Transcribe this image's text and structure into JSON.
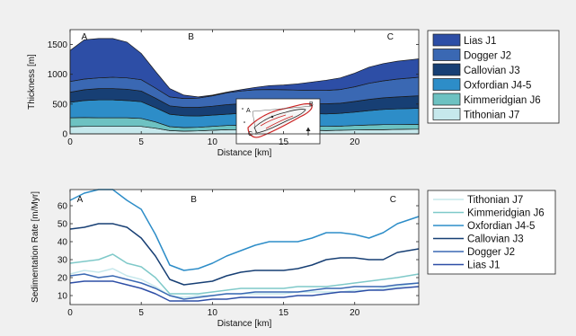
{
  "chart_data": [
    {
      "type": "area",
      "xlabel": "Distance [km]",
      "ylabel": "Thickness [m]",
      "xlim": [
        0,
        24.5
      ],
      "ylim": [
        1750,
        0
      ],
      "y_inverted": true,
      "xticks": [
        0,
        5,
        10,
        15,
        20
      ],
      "yticks": [
        0,
        500,
        1000,
        1500
      ],
      "section_labels": [
        {
          "text": "A",
          "x": 1
        },
        {
          "text": "B",
          "x": 8.5
        },
        {
          "text": "C",
          "x": 22.5
        }
      ],
      "legend_position": "right",
      "x": [
        0,
        1,
        2,
        3,
        4,
        5,
        6,
        7,
        8,
        9,
        10,
        11,
        12,
        13,
        14,
        15,
        16,
        17,
        18,
        19,
        20,
        21,
        22,
        23,
        24.5
      ],
      "top_surface": [
        0,
        0,
        0,
        0,
        0,
        0,
        0,
        0,
        0,
        0,
        0,
        0,
        0,
        0,
        0,
        0,
        0,
        0,
        0,
        0,
        0,
        0,
        0,
        0,
        0
      ],
      "series": [
        {
          "name": "Tithonian J7",
          "color": "#c6e8ec",
          "base": [
            120,
            125,
            125,
            125,
            125,
            125,
            95,
            55,
            45,
            50,
            60,
            70,
            65,
            60,
            55,
            55,
            60,
            60,
            55,
            60,
            65,
            70,
            70,
            75,
            80
          ]
        },
        {
          "name": "Kimmeridgian J6",
          "color": "#6dc2c2",
          "base": [
            270,
            275,
            270,
            270,
            270,
            260,
            200,
            120,
            105,
            110,
            125,
            140,
            145,
            140,
            130,
            125,
            130,
            130,
            125,
            130,
            140,
            150,
            155,
            155,
            160
          ]
        },
        {
          "name": "Oxfordian J4-5",
          "color": "#2d8dc8",
          "base": [
            530,
            560,
            570,
            570,
            560,
            540,
            440,
            330,
            305,
            300,
            315,
            330,
            345,
            355,
            350,
            345,
            340,
            340,
            335,
            345,
            365,
            390,
            410,
            420,
            430
          ]
        },
        {
          "name": "Callovian J3",
          "color": "#173f74",
          "base": [
            700,
            740,
            760,
            760,
            750,
            720,
            600,
            470,
            445,
            445,
            465,
            490,
            505,
            515,
            515,
            510,
            505,
            505,
            505,
            515,
            545,
            580,
            605,
            620,
            640
          ]
        },
        {
          "name": "Dogger J2",
          "color": "#3a68b3",
          "base": [
            880,
            920,
            940,
            950,
            940,
            910,
            770,
            620,
            595,
            600,
            640,
            690,
            720,
            740,
            745,
            740,
            735,
            730,
            730,
            745,
            790,
            850,
            890,
            920,
            950
          ]
        },
        {
          "name": "Lias J1",
          "color": "#2d4ea6",
          "base": [
            1400,
            1580,
            1600,
            1600,
            1540,
            1350,
            1050,
            760,
            650,
            620,
            650,
            700,
            740,
            780,
            810,
            820,
            840,
            870,
            900,
            940,
            1020,
            1120,
            1180,
            1220,
            1260
          ]
        }
      ]
    },
    {
      "type": "line",
      "xlabel": "Distance [km]",
      "ylabel": "Sedimentation Rate [m/Myr]",
      "xlim": [
        0,
        24.5
      ],
      "ylim": [
        5,
        69
      ],
      "xticks": [
        0,
        5,
        10,
        15,
        20
      ],
      "yticks": [
        10,
        20,
        30,
        40,
        50,
        60
      ],
      "section_labels": [
        {
          "text": "A",
          "x": 0.5
        },
        {
          "text": "B",
          "x": 8.5
        },
        {
          "text": "C",
          "x": 22.5
        }
      ],
      "legend_position": "right",
      "x": [
        0,
        1,
        2,
        3,
        4,
        5,
        6,
        7,
        8,
        9,
        10,
        11,
        12,
        13,
        14,
        15,
        16,
        17,
        18,
        19,
        20,
        21,
        22,
        23,
        24.5
      ],
      "series": [
        {
          "name": "Tithonian J7",
          "color": "#c6e8ec",
          "values": [
            22,
            24,
            23,
            25,
            21,
            19,
            15,
            10,
            9,
            10,
            10,
            11,
            11,
            11,
            11,
            11,
            12,
            12,
            12,
            12,
            13,
            13,
            14,
            15,
            17
          ]
        },
        {
          "name": "Kimmeridgian J6",
          "color": "#7fc9c9",
          "values": [
            28,
            29,
            30,
            33,
            28,
            26,
            20,
            11,
            11,
            11,
            12,
            13,
            14,
            14,
            14,
            14,
            15,
            15,
            15,
            16,
            17,
            18,
            19,
            20,
            22
          ]
        },
        {
          "name": "Oxfordian J4-5",
          "color": "#2d8dc8",
          "values": [
            63,
            67,
            69,
            69,
            63,
            58,
            44,
            27,
            24,
            25,
            28,
            32,
            35,
            38,
            40,
            40,
            40,
            42,
            45,
            45,
            44,
            42,
            45,
            50,
            54
          ]
        },
        {
          "name": "Callovian J3",
          "color": "#173f74",
          "values": [
            47,
            48,
            50,
            50,
            48,
            42,
            32,
            19,
            16,
            17,
            18,
            21,
            23,
            24,
            24,
            24,
            25,
            27,
            30,
            31,
            31,
            30,
            30,
            34,
            36
          ]
        },
        {
          "name": "Dogger J2",
          "color": "#3a68b3",
          "values": [
            21,
            22,
            20,
            21,
            19,
            17,
            14,
            10,
            8,
            9,
            10,
            11,
            11,
            12,
            12,
            12,
            12,
            13,
            14,
            14,
            15,
            15,
            15,
            16,
            17
          ]
        },
        {
          "name": "Lias J1",
          "color": "#2d4ea6",
          "values": [
            17,
            18,
            18,
            18,
            16,
            14,
            11,
            7,
            7,
            7,
            8,
            8,
            9,
            9,
            9,
            9,
            10,
            10,
            11,
            12,
            12,
            13,
            13,
            14,
            15
          ]
        }
      ]
    }
  ],
  "inset_map": {
    "labels": [
      "A",
      "B",
      "C"
    ],
    "icons": [
      "north-arrow-icon"
    ]
  }
}
